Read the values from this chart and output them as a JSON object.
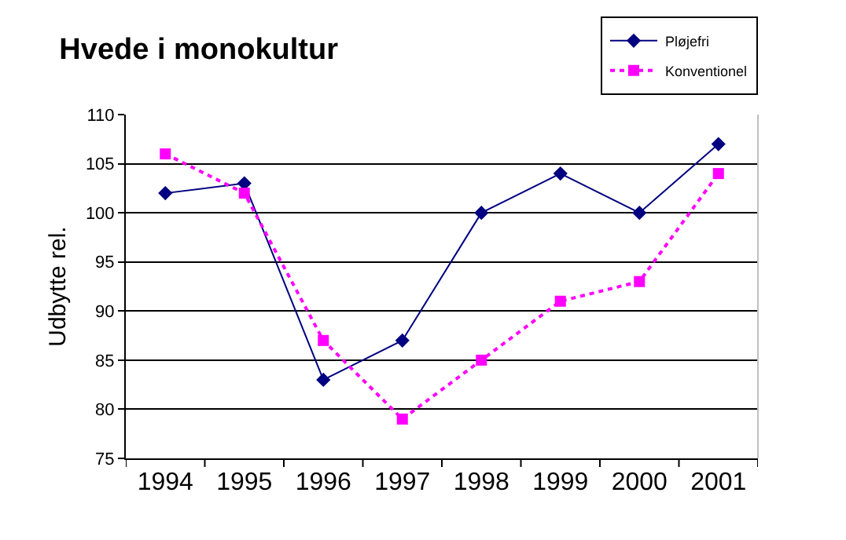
{
  "chart_data": {
    "type": "line",
    "title": "Hvede i monokultur",
    "ylabel": "Udbytte rel.",
    "categories": [
      "1994",
      "1995",
      "1996",
      "1997",
      "1998",
      "1999",
      "2000",
      "2001"
    ],
    "series": [
      {
        "name": "Pløjefri",
        "color": "#000080",
        "marker": "diamond",
        "line_style": "solid",
        "values": [
          102,
          103,
          83,
          87,
          100,
          104,
          100,
          107
        ]
      },
      {
        "name": "Konventionel",
        "color": "#ff00ff",
        "marker": "square",
        "line_style": "dotted",
        "values": [
          106,
          102,
          87,
          79,
          85,
          91,
          93,
          104
        ]
      }
    ],
    "ylim": [
      75,
      110
    ],
    "yticks": [
      75,
      80,
      85,
      90,
      95,
      100,
      105,
      110
    ],
    "grid": "y",
    "legend": "top right"
  }
}
